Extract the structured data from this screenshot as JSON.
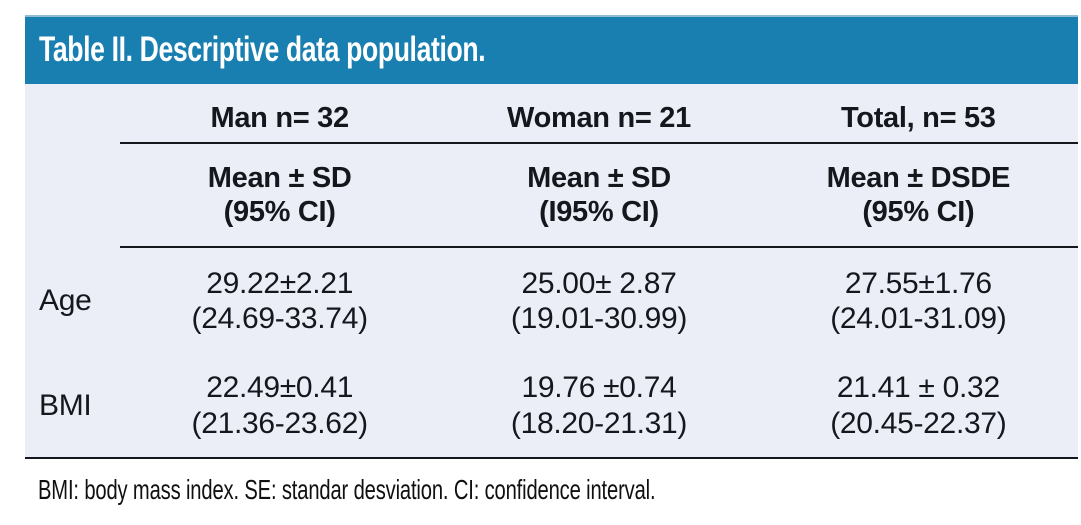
{
  "chart_data": {
    "type": "table",
    "title": "Table II. Descriptive data population.",
    "columns": [
      {
        "header": "Man n= 32",
        "subheader": "Mean ± SD\n(95% CI)"
      },
      {
        "header": "Woman n= 21",
        "subheader": "Mean ± SD\n(I95% CI)"
      },
      {
        "header": "Total, n= 53",
        "subheader": "Mean ± DSDE\n(95% CI)"
      }
    ],
    "rows": [
      {
        "label": "Age",
        "values": [
          "29.22±2.21\n(24.69-33.74)",
          "25.00± 2.87\n(19.01-30.99)",
          "27.55±1.76\n(24.01-31.09)"
        ]
      },
      {
        "label": "BMI",
        "values": [
          "22.49±0.41\n(21.36-23.62)",
          "19.76 ±0.74\n(18.20-21.31)",
          "21.41 ± 0.32\n(20.45-22.37)"
        ]
      }
    ],
    "footnote": "BMI: body mass index. SE: standar desviation. CI: confidence interval.",
    "colors": {
      "header_bg": "#187fb0",
      "table_bg": "#ebeef6",
      "rule": "#14181c",
      "title_text": "#ffffff",
      "body_text": "#14181c"
    }
  }
}
